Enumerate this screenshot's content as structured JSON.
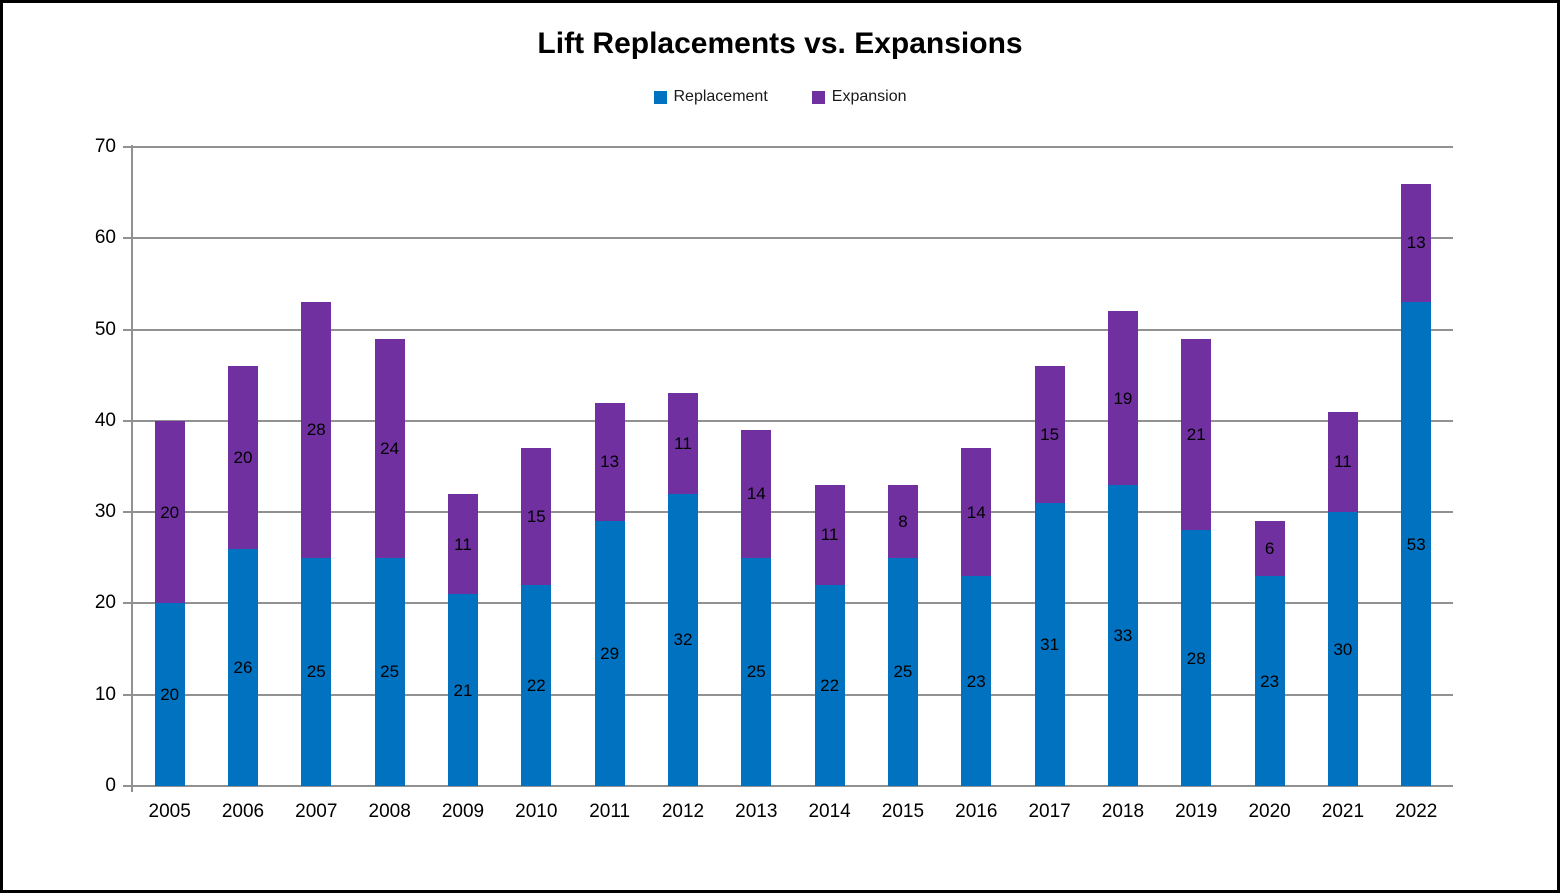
{
  "chart": {
    "title": "Lift Replacements vs. Expansions"
  },
  "chart_data": {
    "type": "bar",
    "stacked": true,
    "title": "Lift Replacements vs. Expansions",
    "categories": [
      "2005",
      "2006",
      "2007",
      "2008",
      "2009",
      "2010",
      "2011",
      "2012",
      "2013",
      "2014",
      "2015",
      "2016",
      "2017",
      "2018",
      "2019",
      "2020",
      "2021",
      "2022"
    ],
    "series": [
      {
        "name": "Replacement",
        "color": "#0072C0",
        "values": [
          20,
          26,
          25,
          25,
          21,
          22,
          29,
          32,
          25,
          22,
          25,
          23,
          31,
          33,
          28,
          23,
          30,
          53
        ]
      },
      {
        "name": "Expansion",
        "color": "#7030A0",
        "values": [
          20,
          20,
          28,
          24,
          11,
          15,
          13,
          11,
          14,
          11,
          8,
          14,
          15,
          19,
          21,
          6,
          11,
          13
        ]
      }
    ],
    "xlabel": "",
    "ylabel": "",
    "ylim": [
      0,
      70
    ],
    "yticks": [
      0,
      10,
      20,
      30,
      40,
      50,
      60,
      70
    ],
    "grid": true,
    "grid_color": "#919191",
    "legend_position": "top",
    "data_labels": true,
    "label_color": "#000000"
  }
}
